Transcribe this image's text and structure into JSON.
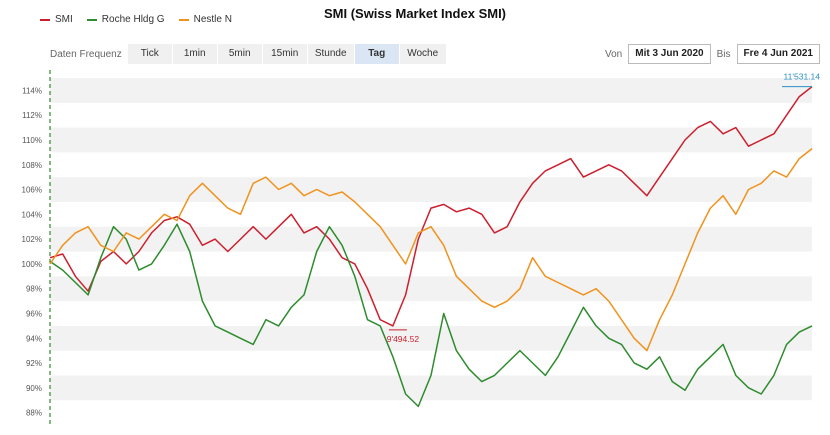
{
  "chart_data": {
    "type": "line",
    "title": "SMI (Swiss Market Index SMI)",
    "xlabel": "",
    "ylabel": "",
    "yticks": [
      "88%",
      "90%",
      "92%",
      "94%",
      "96%",
      "98%",
      "100%",
      "102%",
      "104%",
      "106%",
      "108%",
      "110%",
      "112%",
      "114%"
    ],
    "ylim": [
      87,
      115
    ],
    "grid": true,
    "legend_position": "top-left",
    "x_index_range": [
      0,
      60
    ],
    "series": [
      {
        "name": "SMI",
        "color": "#cc1f2e",
        "values": [
          100.5,
          100.8,
          99.0,
          97.8,
          100.2,
          101.0,
          100.0,
          101.0,
          102.5,
          103.5,
          103.8,
          103.2,
          101.5,
          102.0,
          101.0,
          102.0,
          103.0,
          102.0,
          103.0,
          104.0,
          102.5,
          103.0,
          102.0,
          100.5,
          100.0,
          98.0,
          95.5,
          95.0,
          97.5,
          102.0,
          104.5,
          104.8,
          104.2,
          104.5,
          104.0,
          102.5,
          103.0,
          105.0,
          106.5,
          107.5,
          108.0,
          108.5,
          107.0,
          107.5,
          108.0,
          107.5,
          106.5,
          105.5,
          107.0,
          108.5,
          110.0,
          111.0,
          111.5,
          110.5,
          111.0,
          109.5,
          110.0,
          110.5,
          112.0,
          113.5,
          114.3
        ]
      },
      {
        "name": "Roche Hldg G",
        "color": "#2e8b2e",
        "values": [
          100.2,
          99.5,
          98.5,
          97.5,
          100.5,
          103.0,
          102.0,
          99.5,
          100.0,
          101.5,
          103.2,
          101.0,
          97.0,
          95.0,
          94.5,
          94.0,
          93.5,
          95.5,
          95.0,
          96.5,
          97.5,
          101.0,
          103.0,
          101.5,
          99.0,
          95.5,
          95.0,
          92.5,
          89.5,
          88.5,
          91.0,
          96.0,
          93.0,
          91.5,
          90.5,
          91.0,
          92.0,
          93.0,
          92.0,
          91.0,
          92.5,
          94.5,
          96.5,
          95.0,
          94.0,
          93.5,
          92.0,
          91.5,
          92.5,
          90.5,
          89.8,
          91.5,
          92.5,
          93.5,
          91.0,
          90.0,
          89.5,
          91.0,
          93.5,
          94.5,
          95.0
        ]
      },
      {
        "name": "Nestle N",
        "color": "#f0931e",
        "values": [
          100.0,
          101.5,
          102.5,
          103.0,
          101.5,
          101.0,
          102.5,
          102.0,
          103.0,
          104.0,
          103.5,
          105.5,
          106.5,
          105.5,
          104.5,
          104.0,
          106.5,
          107.0,
          106.0,
          106.5,
          105.5,
          106.0,
          105.5,
          105.8,
          105.0,
          104.0,
          103.0,
          101.5,
          100.0,
          102.5,
          103.0,
          101.5,
          99.0,
          98.0,
          97.0,
          96.5,
          97.0,
          98.0,
          100.5,
          99.0,
          98.5,
          98.0,
          97.5,
          98.0,
          97.0,
          95.5,
          94.0,
          93.0,
          95.5,
          97.5,
          100.0,
          102.5,
          104.5,
          105.5,
          104.0,
          106.0,
          106.5,
          107.5,
          107.0,
          108.5,
          109.3
        ]
      }
    ],
    "annotations": [
      {
        "text": "11'531.14",
        "series": "SMI",
        "index": 60,
        "color": "#2a90c8"
      },
      {
        "text": "9'494.52",
        "series": "SMI",
        "index": 27,
        "color": "#cc1f2e"
      }
    ]
  },
  "controls": {
    "freq_label": "Daten Frequenz",
    "freq_buttons": [
      "Tick",
      "1min",
      "5min",
      "15min",
      "Stunde",
      "Tag",
      "Woche"
    ],
    "active_freq": "Tag",
    "from_label": "Von",
    "from_date": "Mit 3 Jun 2020",
    "to_label": "Bis",
    "to_date": "Fre 4 Jun 2021"
  }
}
